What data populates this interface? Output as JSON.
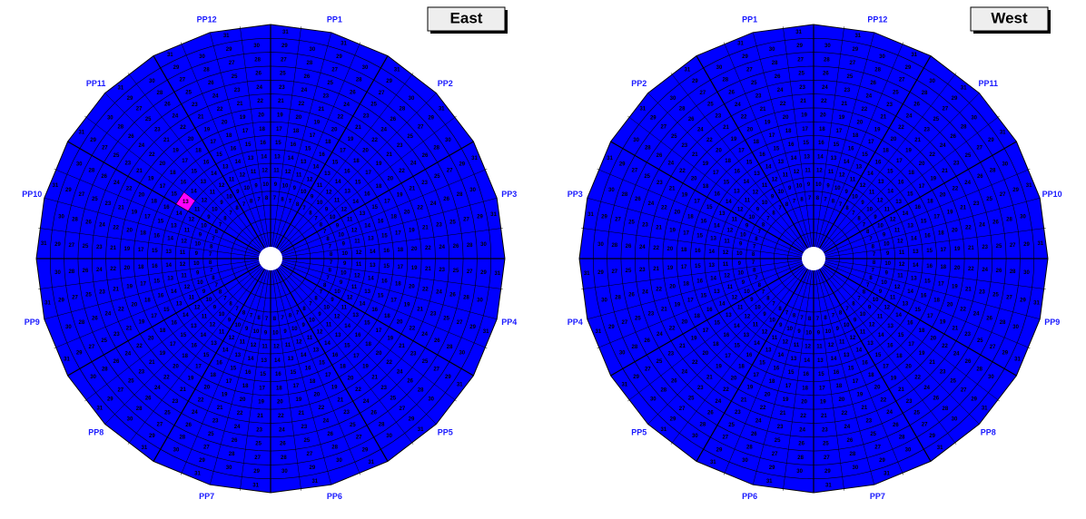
{
  "panels": [
    {
      "title": "East",
      "direction": "clockwise"
    },
    {
      "title": "West",
      "direction": "counterclockwise"
    }
  ],
  "pp_labels": [
    "PP1",
    "PP2",
    "PP3",
    "PP4",
    "PP5",
    "PP6",
    "PP7",
    "PP8",
    "PP9",
    "PP10",
    "PP11",
    "PP12"
  ],
  "rings": [
    1,
    2,
    3,
    4,
    5,
    6,
    7,
    8,
    9,
    10,
    11,
    12,
    13,
    14,
    15,
    16,
    17,
    18,
    19,
    20,
    21,
    22,
    23,
    24,
    25,
    26,
    27,
    28,
    29,
    30,
    31
  ],
  "fill": "#0000ff",
  "highlight_color": "#ff00ff"
}
